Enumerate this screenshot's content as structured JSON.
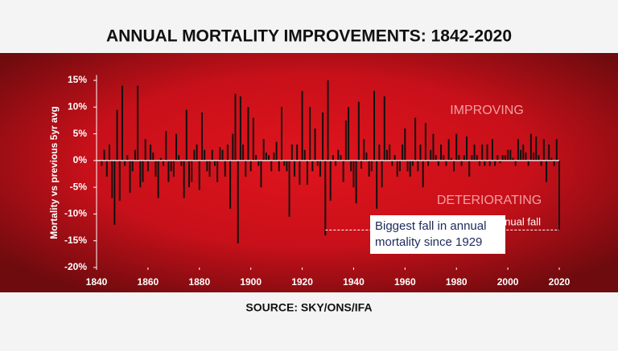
{
  "chart_data": {
    "type": "bar",
    "title": "ANNUAL MORTALITY IMPROVEMENTS: 1842-2020",
    "y_label": "Mortality vs previous 5yr avg",
    "source": "SOURCE: SKY/ONS/IFA",
    "annotations": [
      "IMPROVING",
      "DETERIORATING",
      "nnual fall",
      "Biggest fall in annual",
      "mortality since 1929"
    ],
    "color": "#111111",
    "x": [
      1842,
      1843,
      1844,
      1845,
      1846,
      1847,
      1848,
      1849,
      1850,
      1851,
      1852,
      1853,
      1854,
      1855,
      1856,
      1857,
      1858,
      1859,
      1860,
      1861,
      1862,
      1863,
      1864,
      1865,
      1866,
      1867,
      1868,
      1869,
      1870,
      1871,
      1872,
      1873,
      1874,
      1875,
      1876,
      1877,
      1878,
      1879,
      1880,
      1881,
      1882,
      1883,
      1884,
      1885,
      1886,
      1887,
      1888,
      1889,
      1890,
      1891,
      1892,
      1893,
      1894,
      1895,
      1896,
      1897,
      1898,
      1899,
      1900,
      1901,
      1902,
      1903,
      1904,
      1905,
      1906,
      1907,
      1908,
      1909,
      1910,
      1911,
      1912,
      1913,
      1914,
      1915,
      1916,
      1917,
      1918,
      1919,
      1920,
      1921,
      1922,
      1923,
      1924,
      1925,
      1926,
      1927,
      1928,
      1929,
      1930,
      1931,
      1932,
      1933,
      1934,
      1935,
      1936,
      1937,
      1938,
      1939,
      1940,
      1941,
      1942,
      1943,
      1944,
      1945,
      1946,
      1947,
      1948,
      1949,
      1950,
      1951,
      1952,
      1953,
      1954,
      1955,
      1956,
      1957,
      1958,
      1959,
      1960,
      1961,
      1962,
      1963,
      1964,
      1965,
      1966,
      1967,
      1968,
      1969,
      1970,
      1971,
      1972,
      1973,
      1974,
      1975,
      1976,
      1977,
      1978,
      1979,
      1980,
      1981,
      1982,
      1983,
      1984,
      1985,
      1986,
      1987,
      1988,
      1989,
      1990,
      1991,
      1992,
      1993,
      1994,
      1995,
      1996,
      1997,
      1998,
      1999,
      2000,
      2001,
      2002,
      2003,
      2004,
      2005,
      2006,
      2007,
      2008,
      2009,
      2010,
      2011,
      2012,
      2013,
      2014,
      2015,
      2016,
      2017,
      2018,
      2019,
      2020
    ],
    "values": [
      -1,
      2,
      -3,
      3,
      -7,
      -12,
      9.5,
      -7.5,
      14,
      -1,
      1,
      -6,
      -2,
      2,
      14,
      -5,
      -4,
      4,
      -2,
      3,
      1.5,
      -3,
      -7,
      0.5,
      -1,
      5.5,
      -4,
      -2,
      -3,
      5,
      1,
      -1,
      -7,
      9.5,
      -5,
      -4,
      2,
      3,
      -5.5,
      9,
      2,
      -2,
      -3,
      2,
      -1,
      -4,
      2.5,
      2,
      -3,
      3,
      -9,
      5,
      12.5,
      -15.5,
      12,
      3,
      -3,
      10,
      -2,
      8,
      1,
      -1,
      -5,
      4,
      1.5,
      1,
      -2,
      1.5,
      3.5,
      -2,
      10,
      -1,
      -2,
      -10.5,
      3,
      -3,
      3,
      -4.5,
      13,
      2,
      -4.5,
      10,
      -2,
      6,
      -1,
      -3,
      9,
      -14,
      15,
      -7.5,
      1,
      -1,
      2,
      1,
      -4,
      7.5,
      10,
      -2,
      -5,
      -8,
      11,
      -1.5,
      4,
      1.5,
      -3,
      -2,
      13,
      -9,
      3,
      -5,
      12,
      2,
      3,
      -1,
      1,
      -3,
      -2,
      3,
      6,
      -2,
      -3,
      -1,
      8,
      -2,
      3,
      -5,
      7,
      -1,
      2,
      5,
      1,
      -1,
      3,
      1,
      -1,
      4,
      0.5,
      -2,
      5,
      1,
      -1,
      1,
      4.5,
      -3,
      1,
      3,
      1,
      -1,
      3,
      -1,
      3,
      -1,
      4,
      -1,
      1,
      -0.5,
      1,
      1,
      2,
      2,
      0.5,
      -1,
      4,
      2,
      3,
      1.5,
      -1,
      5,
      1.5,
      4.5,
      1,
      -1,
      4,
      -4,
      3,
      0.5,
      -1,
      4,
      -13
    ],
    "xlim": [
      1840,
      2020
    ],
    "xticks": [
      1840,
      1860,
      1880,
      1900,
      1920,
      1940,
      1960,
      1980,
      2000,
      2020
    ],
    "ylim": [
      -20,
      16
    ],
    "yticks": [
      {
        "value": -20,
        "label": "-20%"
      },
      {
        "value": -15,
        "label": "-15%"
      },
      {
        "value": -10,
        "label": "-10%"
      },
      {
        "value": -5,
        "label": "-5%"
      },
      {
        "value": 0,
        "label": "0%"
      },
      {
        "value": 5,
        "label": "5%"
      },
      {
        "value": 10,
        "label": "10%"
      },
      {
        "value": 15,
        "label": "15%"
      }
    ]
  }
}
